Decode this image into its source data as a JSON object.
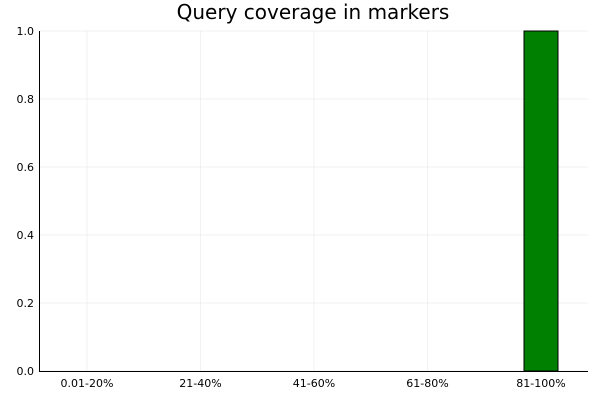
{
  "chart_data": {
    "type": "bar",
    "title": "Query coverage in markers",
    "categories": [
      "0.01-20%",
      "21-40%",
      "41-60%",
      "61-80%",
      "81-100%"
    ],
    "values": [
      0,
      0,
      0,
      0,
      1.0
    ],
    "xlabel": "",
    "ylabel": "",
    "ylim": [
      0,
      1.0
    ],
    "yticks": [
      0.0,
      0.2,
      0.4,
      0.6,
      0.8,
      1.0
    ],
    "ytick_labels": [
      "0.0",
      "0.2",
      "0.4",
      "0.6",
      "0.8",
      "1.0"
    ],
    "grid": true,
    "legend": false,
    "bar_color": "#008000",
    "bar_edge_color": "#000000"
  }
}
